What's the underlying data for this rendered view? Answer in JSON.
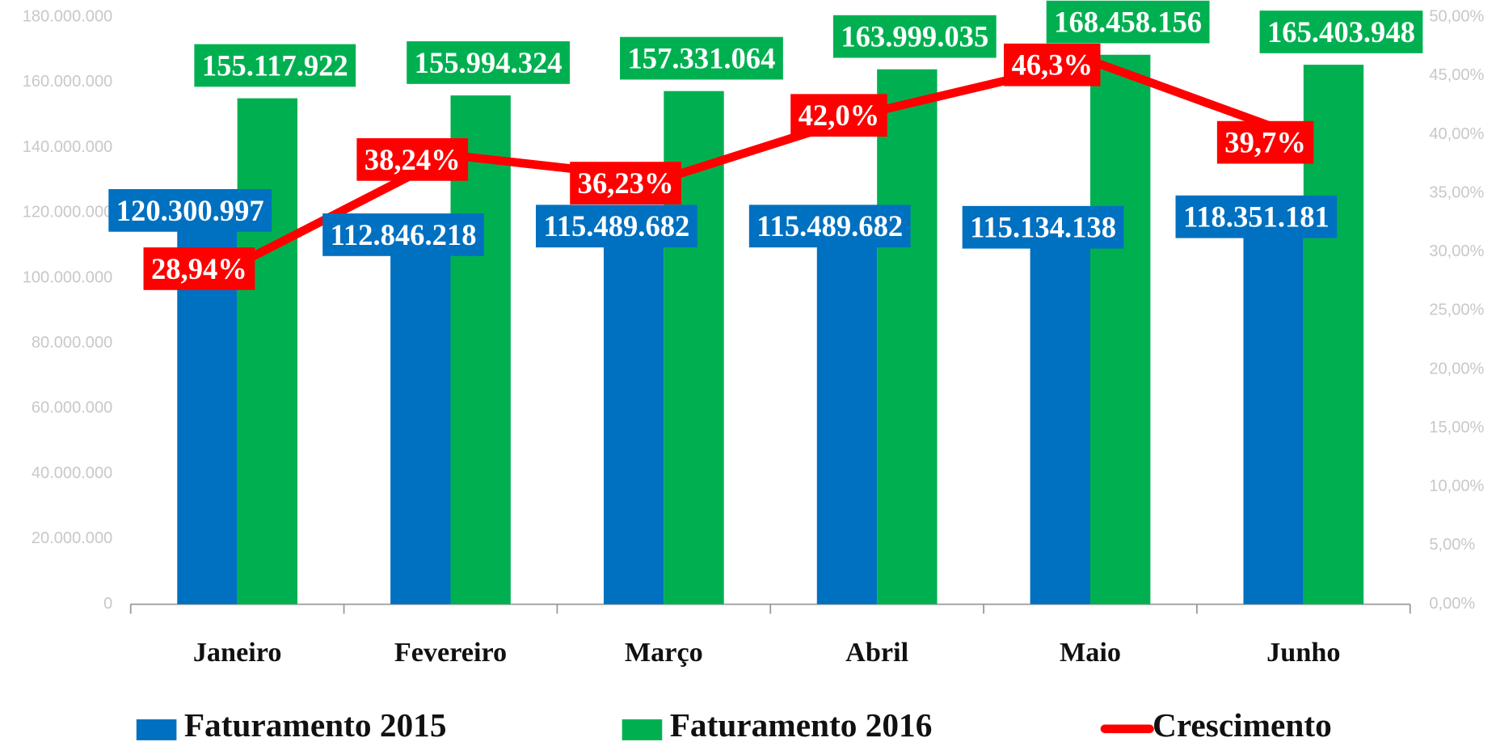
{
  "chart_data": {
    "type": "bar",
    "categories": [
      "Janeiro",
      "Fevereiro",
      "Março",
      "Abril",
      "Maio",
      "Junho"
    ],
    "series": [
      {
        "name": "Faturamento 2015",
        "color": "#0070c0",
        "values": [
          120300997,
          112846218,
          115489682,
          115489682,
          115134138,
          118351181
        ],
        "value_labels": [
          "120.300.997",
          "112.846.218",
          "115.489.682",
          "115.489.682",
          "115.134.138",
          "118.351.181"
        ]
      },
      {
        "name": "Faturamento 2016",
        "color": "#00b050",
        "values": [
          155117922,
          155994324,
          157331064,
          163999035,
          168458156,
          165403948
        ],
        "value_labels": [
          "155.117.922",
          "155.994.324",
          "157.331.064",
          "163.999.035",
          "168.458.156",
          "165.403.948"
        ]
      },
      {
        "name": "Crescimento",
        "type": "line",
        "axis": "y2",
        "color": "#ff0000",
        "values": [
          28.94,
          38.24,
          36.23,
          42.0,
          46.3,
          39.7
        ],
        "value_labels": [
          "28,94%",
          "38,24%",
          "36,23%",
          "42,0%",
          "46,3%",
          "39,7%"
        ]
      }
    ],
    "ylim": [
      0,
      180000000
    ],
    "yticks": [
      {
        "value": 0,
        "label": "0"
      },
      {
        "value": 20000000,
        "label": "20.000.000"
      },
      {
        "value": 40000000,
        "label": "40.000.000"
      },
      {
        "value": 60000000,
        "label": "60.000.000"
      },
      {
        "value": 80000000,
        "label": "80.000.000"
      },
      {
        "value": 100000000,
        "label": "100.000.000"
      },
      {
        "value": 120000000,
        "label": "120.000.000"
      },
      {
        "value": 140000000,
        "label": "140.000.000"
      },
      {
        "value": 160000000,
        "label": "160.000.000"
      },
      {
        "value": 180000000,
        "label": "180.000.000"
      }
    ],
    "y2lim": [
      0,
      50
    ],
    "y2ticks": [
      {
        "value": 0,
        "label": "0,00%"
      },
      {
        "value": 5,
        "label": "5,00%"
      },
      {
        "value": 10,
        "label": "10,00%"
      },
      {
        "value": 15,
        "label": "15,00%"
      },
      {
        "value": 20,
        "label": "20,00%"
      },
      {
        "value": 25,
        "label": "25,00%"
      },
      {
        "value": 30,
        "label": "30,00%"
      },
      {
        "value": 35,
        "label": "35,00%"
      },
      {
        "value": 40,
        "label": "40,00%"
      },
      {
        "value": 45,
        "label": "45,00%"
      },
      {
        "value": 50,
        "label": "50,00%"
      }
    ],
    "legend": "bottom"
  }
}
